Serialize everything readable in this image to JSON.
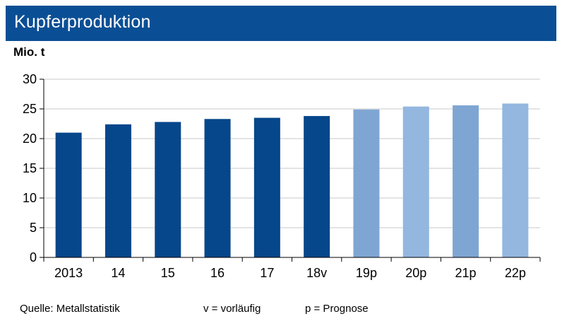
{
  "header": {
    "title": "Kupferproduktion"
  },
  "unit": "Mio. t",
  "footer": {
    "source": "Quelle: Metallstatistik",
    "note_v": "v = vorläufig",
    "note_p": "p = Prognose"
  },
  "colors": {
    "header_bg": "#0a4f95",
    "bar_actual": "#06468a",
    "bar_forecast_a": "#7fa6d3",
    "bar_forecast_b": "#93b7df"
  },
  "chart_data": {
    "type": "bar",
    "categories": [
      "2013",
      "14",
      "15",
      "16",
      "17",
      "18v",
      "19p",
      "20p",
      "21p",
      "22p"
    ],
    "values": [
      21.0,
      22.4,
      22.8,
      23.3,
      23.5,
      23.8,
      24.9,
      25.4,
      25.6,
      25.9
    ],
    "bar_kind": [
      "actual",
      "actual",
      "actual",
      "actual",
      "actual",
      "actual",
      "forecast",
      "forecast",
      "forecast",
      "forecast"
    ],
    "ylabel": "Mio. t",
    "ylim": [
      0,
      30
    ],
    "yticks": [
      0,
      5,
      10,
      15,
      20,
      25,
      30
    ],
    "grid": true
  }
}
